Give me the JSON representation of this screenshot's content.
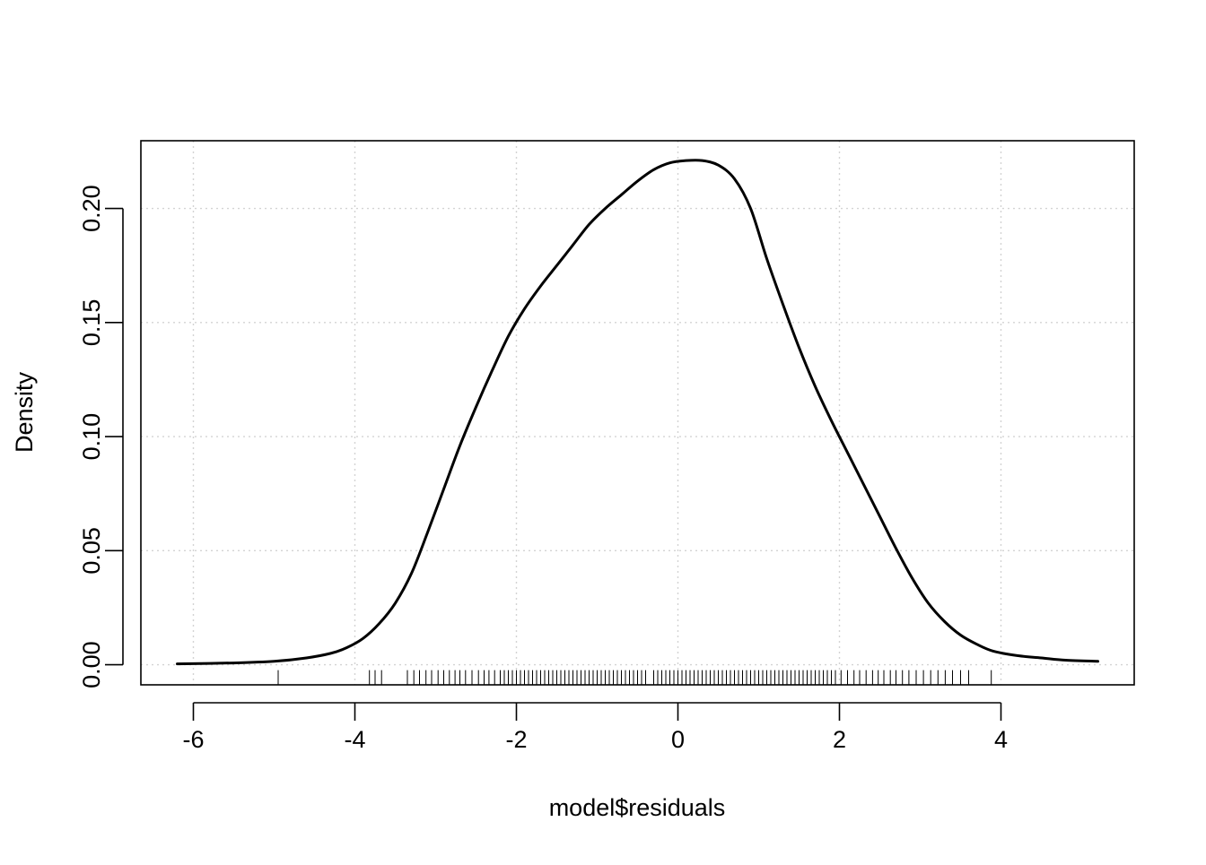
{
  "chart_data": {
    "type": "line",
    "title": "",
    "xlabel": "model$residuals",
    "ylabel": "Density",
    "xlim": [
      -6.65,
      5.65
    ],
    "ylim": [
      -0.0088,
      0.2297
    ],
    "x_ticks": [
      "-6",
      "-4",
      "-2",
      "0",
      "2",
      "4"
    ],
    "x_tick_values": [
      -6,
      -4,
      -2,
      0,
      2,
      4
    ],
    "y_ticks": [
      "0.00",
      "0.05",
      "0.10",
      "0.15",
      "0.20"
    ],
    "y_tick_values": [
      0,
      0.05,
      0.1,
      0.15,
      0.2
    ],
    "grid": true,
    "legend": "none",
    "line_color": "#000000",
    "grid_color": "#d3d3d3",
    "series": [
      {
        "x": [
          -6.2,
          -5.5,
          -5.0,
          -4.6,
          -4.3,
          -4.1,
          -3.9,
          -3.7,
          -3.5,
          -3.3,
          -3.1,
          -2.9,
          -2.7,
          -2.5,
          -2.3,
          -2.1,
          -1.9,
          -1.7,
          -1.5,
          -1.3,
          -1.1,
          -0.9,
          -0.7,
          -0.5,
          -0.3,
          -0.1,
          0.1,
          0.3,
          0.5,
          0.7,
          0.9,
          1.1,
          1.3,
          1.5,
          1.7,
          1.9,
          2.1,
          2.3,
          2.5,
          2.7,
          2.9,
          3.1,
          3.3,
          3.5,
          3.7,
          3.9,
          4.2,
          4.5,
          4.8,
          5.2
        ],
        "y": [
          0.0004,
          0.0008,
          0.0015,
          0.003,
          0.005,
          0.0075,
          0.0115,
          0.018,
          0.027,
          0.04,
          0.058,
          0.077,
          0.096,
          0.113,
          0.129,
          0.144,
          0.156,
          0.166,
          0.175,
          0.184,
          0.193,
          0.2,
          0.206,
          0.212,
          0.217,
          0.22,
          0.221,
          0.221,
          0.219,
          0.213,
          0.2,
          0.178,
          0.158,
          0.139,
          0.122,
          0.107,
          0.093,
          0.079,
          0.065,
          0.051,
          0.038,
          0.027,
          0.019,
          0.013,
          0.009,
          0.006,
          0.004,
          0.003,
          0.002,
          0.0015
        ]
      }
    ],
    "rug": [
      -4.95,
      -3.82,
      -3.75,
      -3.67,
      -3.35,
      -3.27,
      -3.2,
      -3.12,
      -3.05,
      -2.97,
      -2.9,
      -2.83,
      -2.76,
      -2.7,
      -2.63,
      -2.55,
      -2.47,
      -2.4,
      -2.34,
      -2.27,
      -2.2,
      -2.15,
      -2.1,
      -2.05,
      -2.0,
      -1.95,
      -1.9,
      -1.85,
      -1.8,
      -1.75,
      -1.7,
      -1.65,
      -1.6,
      -1.55,
      -1.5,
      -1.45,
      -1.4,
      -1.35,
      -1.3,
      -1.25,
      -1.2,
      -1.15,
      -1.1,
      -1.05,
      -1.0,
      -0.95,
      -0.9,
      -0.85,
      -0.8,
      -0.75,
      -0.7,
      -0.65,
      -0.6,
      -0.55,
      -0.5,
      -0.45,
      -0.4,
      -0.3,
      -0.25,
      -0.2,
      -0.15,
      -0.1,
      -0.05,
      0.0,
      0.05,
      0.1,
      0.15,
      0.2,
      0.25,
      0.3,
      0.35,
      0.4,
      0.45,
      0.5,
      0.55,
      0.6,
      0.65,
      0.7,
      0.75,
      0.8,
      0.85,
      0.9,
      0.95,
      1.0,
      1.05,
      1.1,
      1.15,
      1.2,
      1.25,
      1.3,
      1.35,
      1.4,
      1.45,
      1.5,
      1.55,
      1.6,
      1.65,
      1.7,
      1.75,
      1.8,
      1.85,
      1.9,
      1.95,
      2.02,
      2.1,
      2.18,
      2.25,
      2.33,
      2.41,
      2.48,
      2.55,
      2.63,
      2.7,
      2.78,
      2.86,
      2.95,
      3.04,
      3.13,
      3.22,
      3.31,
      3.4,
      3.5,
      3.6,
      3.88
    ]
  }
}
